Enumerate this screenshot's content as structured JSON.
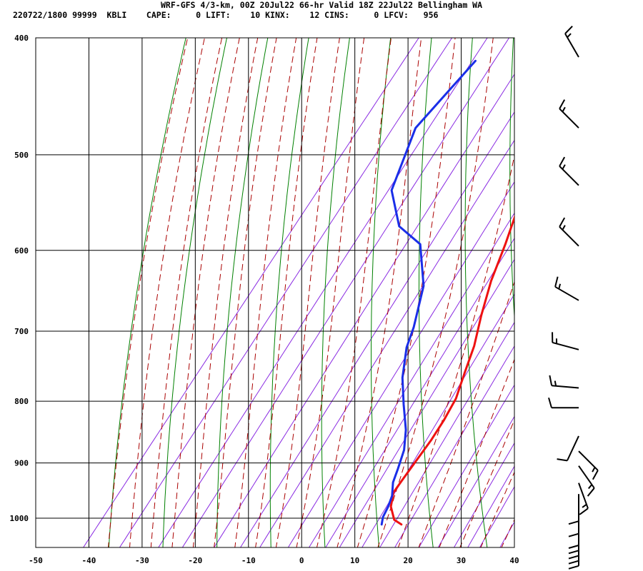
{
  "header": {
    "title": "WRF-GFS 4/3-km, 00Z 20Jul22 66-hr Valid 18Z 22Jul22 Bellingham WA",
    "indices": "220722/1800 99999  KBLI    CAPE:     0 LIFT:    10 KINX:    12 CINS:     0 LFCV:   956"
  },
  "chart_data": {
    "type": "line",
    "title": "WRF-GFS 4/3-km, 00Z 20Jul22 66-hr Valid 18Z 22Jul22 Bellingham WA",
    "xlabel": "",
    "ylabel": "",
    "xlim": [
      -50,
      40
    ],
    "ylim": [
      1040,
      400
    ],
    "y_scale": "log-pressure",
    "grid": true,
    "x_ticks": [
      -50,
      -40,
      -30,
      -20,
      -10,
      0,
      10,
      20,
      30,
      40
    ],
    "y_ticks": [
      400,
      500,
      600,
      700,
      800,
      900,
      1000
    ],
    "colors": {
      "temperature": "#ee1111",
      "dewpoint": "#1a2ee8",
      "dry_adiabat": "#008000",
      "moist_adiabat": "#aa0000",
      "mixing_ratio": "#8a2be2",
      "grid": "#000000",
      "barb": "#000000"
    },
    "series": [
      {
        "key": "temperature",
        "points": [
          [
            -21.5,
            418
          ],
          [
            -14,
            472
          ],
          [
            -10,
            518
          ],
          [
            -7,
            557
          ],
          [
            -4.5,
            593
          ],
          [
            -2,
            636
          ],
          [
            1,
            679
          ],
          [
            4,
            720
          ],
          [
            6,
            758
          ],
          [
            8,
            796
          ],
          [
            8.8,
            830
          ],
          [
            9.2,
            862
          ],
          [
            9.3,
            895
          ],
          [
            9.4,
            930
          ],
          [
            9.5,
            952
          ],
          [
            11,
            978
          ],
          [
            13.5,
            1003
          ],
          [
            15.5,
            1012
          ]
        ]
      },
      {
        "key": "dewpoint",
        "points": [
          [
            -36,
            418
          ],
          [
            -37.8,
            475
          ],
          [
            -33.5,
            535
          ],
          [
            -27,
            573
          ],
          [
            -20.5,
            593
          ],
          [
            -14,
            642
          ],
          [
            -10,
            695
          ],
          [
            -8.5,
            722
          ],
          [
            -5,
            765
          ],
          [
            -1,
            805
          ],
          [
            3,
            845
          ],
          [
            5.5,
            878
          ],
          [
            7,
            910
          ],
          [
            8,
            934
          ],
          [
            9.7,
            958
          ],
          [
            10.5,
            978
          ],
          [
            11,
            998
          ],
          [
            11.8,
            1012
          ]
        ]
      }
    ],
    "wind_barbs": [
      {
        "p": 415,
        "dir": 330,
        "spd": 15
      },
      {
        "p": 475,
        "dir": 315,
        "spd": 15
      },
      {
        "p": 530,
        "dir": 315,
        "spd": 15
      },
      {
        "p": 595,
        "dir": 315,
        "spd": 15
      },
      {
        "p": 660,
        "dir": 300,
        "spd": 15
      },
      {
        "p": 725,
        "dir": 285,
        "spd": 15
      },
      {
        "p": 780,
        "dir": 275,
        "spd": 15
      },
      {
        "p": 810,
        "dir": 270,
        "spd": 10
      },
      {
        "p": 855,
        "dir": 205,
        "spd": 10
      },
      {
        "p": 880,
        "dir": 135,
        "spd": 15
      },
      {
        "p": 905,
        "dir": 145,
        "spd": 15
      },
      {
        "p": 935,
        "dir": 160,
        "spd": 15
      },
      {
        "p": 955,
        "dir": 180,
        "spd": 10
      },
      {
        "p": 978,
        "dir": 180,
        "spd": 10
      },
      {
        "p": 1000,
        "dir": 180,
        "spd": 10
      },
      {
        "p": 1010,
        "dir": 180,
        "spd": 10
      },
      {
        "p": 1020,
        "dir": 180,
        "spd": 10
      },
      {
        "p": 1030,
        "dir": 180,
        "spd": 10
      },
      {
        "p": 1040,
        "dir": 180,
        "spd": 10
      }
    ]
  }
}
